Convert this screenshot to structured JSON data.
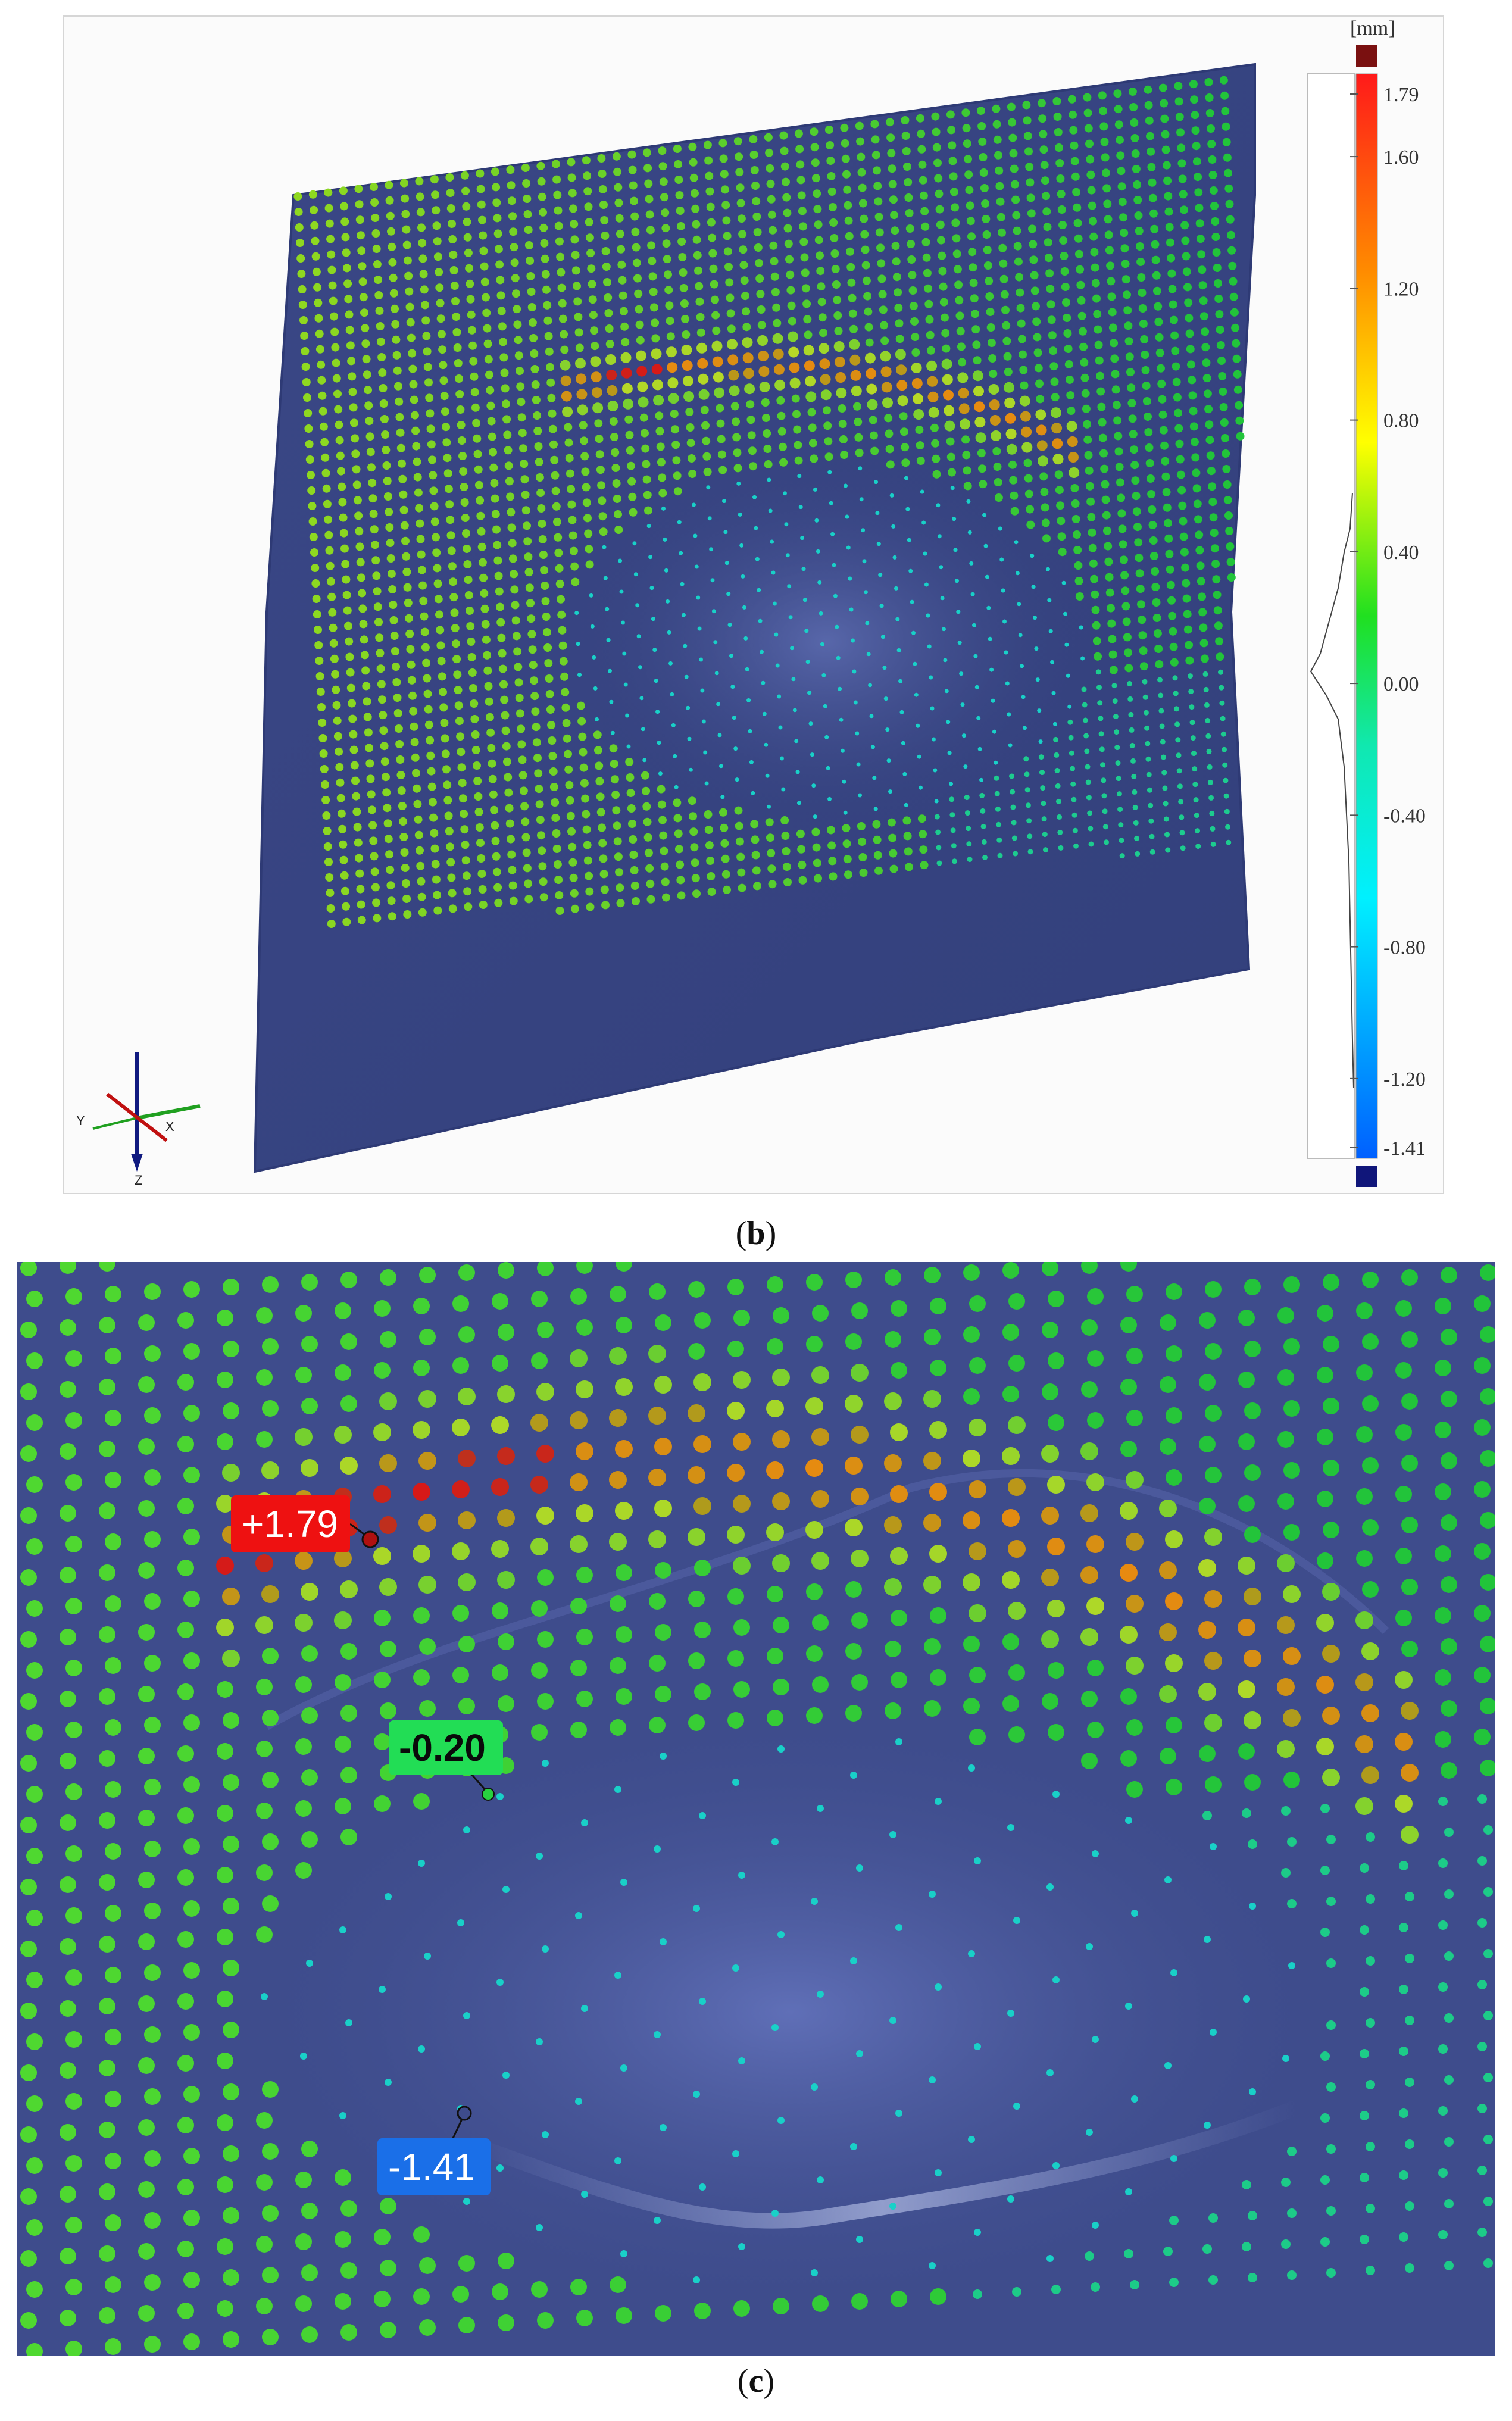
{
  "panels": [
    {
      "caption_letter": "b"
    },
    {
      "caption_letter": "c"
    }
  ],
  "legend": {
    "unit": "[mm]",
    "ticks": [
      "1.79",
      "1.60",
      "1.20",
      "0.80",
      "0.40",
      "0.00",
      "-0.40",
      "-0.80",
      "-1.20",
      "-1.41"
    ],
    "max_color": "#7a1010",
    "min_color": "#10167a"
  },
  "callouts": [
    {
      "text": "+1.79",
      "color": "#ee1111"
    },
    {
      "text": "-0.20",
      "color": "#22dd55"
    },
    {
      "text": "-1.41",
      "color": "#1a6fe8"
    }
  ],
  "triad_axes": [
    "Y",
    "X",
    "Z"
  ],
  "colors": {
    "surface": "#3d4a88",
    "surface_edge": "#2e3a75",
    "green": "#22c43a",
    "yellow": "#e8e020",
    "orange": "#e88a10",
    "red": "#d81818",
    "cyan": "#19d0c8"
  }
}
